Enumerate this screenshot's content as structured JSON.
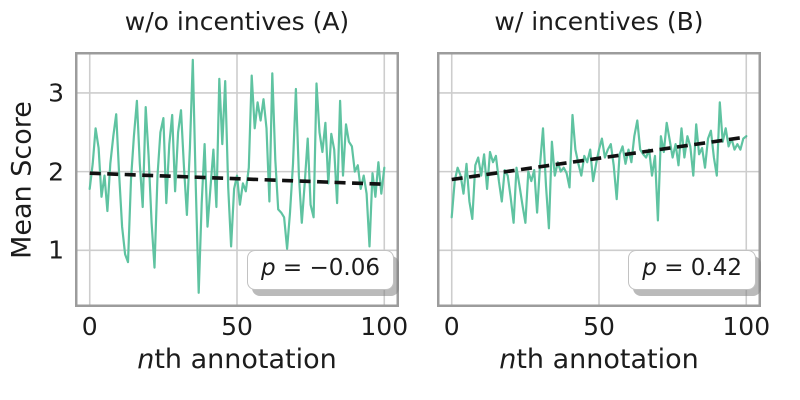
{
  "figure": {
    "ylabel": "Mean Score",
    "xlabel": "nth annotation",
    "xlabel_italic": "n",
    "xlabel_rest": "th annotation"
  },
  "colors": {
    "series": "#5fc3a1",
    "trend": "#111111",
    "grid": "#cdcdcd",
    "spine": "#9c9c9c",
    "text": "#1c1c1c",
    "annotation_bg": "#ffffff",
    "annotation_border": "#c2c2c2"
  },
  "chart_data": [
    {
      "type": "line",
      "title": "w/o incentives (A)",
      "xlabel": "nth annotation",
      "ylabel": "Mean Score",
      "xlim": [
        -5,
        105
      ],
      "ylim": [
        0.28,
        3.52
      ],
      "xticks": [
        0,
        50,
        100
      ],
      "yticks": [
        1,
        2,
        3
      ],
      "grid": true,
      "x_start": 0,
      "x_step": 1,
      "series": [
        {
          "name": "mean score per nth annotation",
          "color": "#5fc3a1",
          "values": [
            1.78,
            2.1,
            2.55,
            2.3,
            1.68,
            1.95,
            1.5,
            2.1,
            2.45,
            2.73,
            1.95,
            1.3,
            0.95,
            0.85,
            1.9,
            2.45,
            2.9,
            2.1,
            1.55,
            2.82,
            2.2,
            1.35,
            0.78,
            1.95,
            2.5,
            2.68,
            1.6,
            2.35,
            2.72,
            1.75,
            2.5,
            2.78,
            2.05,
            1.45,
            2.3,
            3.42,
            1.8,
            0.46,
            1.6,
            2.35,
            1.3,
            1.8,
            2.28,
            1.55,
            3.18,
            2.35,
            3.15,
            1.8,
            1.05,
            1.78,
            1.95,
            1.58,
            1.85,
            1.75,
            2.05,
            3.22,
            2.55,
            2.88,
            2.65,
            2.92,
            2.55,
            1.62,
            3.25,
            2.15,
            1.52,
            1.48,
            1.42,
            1.02,
            1.48,
            2.1,
            3.05,
            1.95,
            1.35,
            1.85,
            2.42,
            1.58,
            1.42,
            3.12,
            2.5,
            2.25,
            2.62,
            1.85,
            2.48,
            2.28,
            1.6,
            2.9,
            1.95,
            2.6,
            2.38,
            2.32,
            2.0,
            2.08,
            1.78,
            1.95,
            1.72,
            1.05,
            1.98,
            1.68,
            2.12,
            1.72,
            2.05
          ]
        }
      ],
      "trend": {
        "name": "linear fit",
        "style": "dashed",
        "color": "#111111",
        "x": [
          0,
          100
        ],
        "values": [
          1.98,
          1.84
        ]
      },
      "annotation": {
        "symbol": "p",
        "rest": " = −0.06",
        "text": "p = −0.06"
      }
    },
    {
      "type": "line",
      "title": "w/ incentives (B)",
      "xlabel": "nth annotation",
      "ylabel": "Mean Score",
      "xlim": [
        -5,
        105
      ],
      "ylim": [
        0.28,
        3.52
      ],
      "xticks": [
        0,
        50,
        100
      ],
      "yticks": [
        1,
        2,
        3
      ],
      "grid": true,
      "x_start": 0,
      "x_step": 1,
      "series": [
        {
          "name": "mean score per nth annotation",
          "color": "#5fc3a1",
          "values": [
            1.42,
            1.88,
            2.05,
            1.95,
            1.72,
            2.1,
            1.62,
            1.4,
            2.08,
            2.18,
            1.95,
            2.22,
            1.78,
            2.25,
            2.12,
            2.2,
            1.88,
            1.62,
            2.02,
            1.95,
            1.68,
            1.35,
            2.05,
            1.82,
            1.58,
            1.35,
            2.0,
            1.88,
            2.02,
            1.48,
            2.1,
            2.55,
            1.82,
            1.28,
            2.38,
            1.95,
            2.12,
            2.0,
            2.05,
            1.98,
            1.8,
            2.72,
            2.28,
            2.1,
            1.95,
            2.2,
            2.12,
            2.28,
            1.88,
            2.1,
            2.28,
            2.42,
            2.18,
            2.28,
            2.35,
            2.08,
            1.65,
            2.22,
            2.32,
            2.1,
            2.28,
            2.12,
            2.45,
            2.65,
            2.28,
            2.22,
            2.18,
            2.28,
            1.95,
            2.2,
            1.38,
            2.45,
            2.25,
            2.62,
            2.4,
            2.18,
            2.35,
            2.08,
            2.55,
            2.18,
            2.45,
            2.32,
            1.95,
            2.6,
            2.22,
            2.3,
            2.05,
            2.42,
            2.52,
            2.18,
            1.95,
            2.88,
            2.38,
            2.55,
            2.32,
            2.42,
            2.28,
            2.35,
            2.28,
            2.42,
            2.45
          ]
        }
      ],
      "trend": {
        "name": "linear fit",
        "style": "dashed",
        "color": "#111111",
        "x": [
          0,
          100
        ],
        "values": [
          1.9,
          2.44
        ]
      },
      "annotation": {
        "symbol": "p",
        "rest": " = 0.42",
        "text": "p = 0.42"
      }
    }
  ]
}
